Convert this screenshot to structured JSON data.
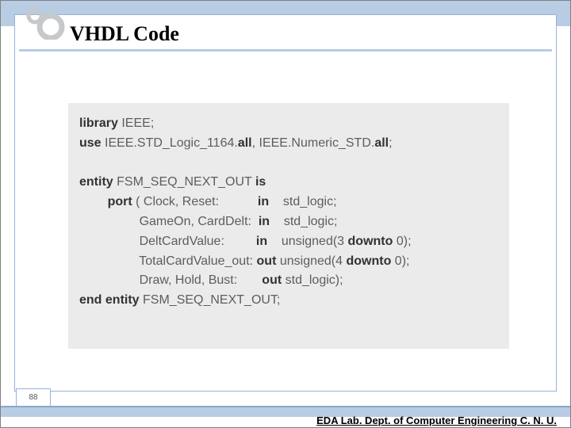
{
  "slide": {
    "title": "VHDL Code",
    "page_number": "88",
    "footer": "EDA Lab. Dept. of Computer Engineering C. N. U."
  },
  "logo": {
    "outer_ring_color": "#c5c9cc",
    "inner_ring_color": "#c5c9cc",
    "dot_color": "#c5c9cc",
    "bg": "#ffffff"
  },
  "code": {
    "background_color": "#efefef",
    "text_color": "#585858",
    "keyword_color": "#2a2a2a",
    "font_size": 16,
    "lines": [
      {
        "segments": [
          {
            "t": "library ",
            "kw": true
          },
          {
            "t": "IEEE;",
            "kw": false
          }
        ]
      },
      {
        "segments": [
          {
            "t": "use ",
            "kw": true
          },
          {
            "t": "IEEE.STD_Logic_1164.",
            "kw": false
          },
          {
            "t": "all",
            "kw": true
          },
          {
            "t": ", IEEE.Numeric_STD.",
            "kw": false
          },
          {
            "t": "all",
            "kw": true
          },
          {
            "t": ";",
            "kw": false
          }
        ]
      },
      {
        "segments": [
          {
            "t": " ",
            "kw": false
          }
        ]
      },
      {
        "segments": [
          {
            "t": "entity ",
            "kw": true
          },
          {
            "t": "FSM_SEQ_NEXT_OUT ",
            "kw": false
          },
          {
            "t": "is",
            "kw": true
          }
        ]
      },
      {
        "segments": [
          {
            "t": "        ",
            "kw": false
          },
          {
            "t": "port ",
            "kw": true
          },
          {
            "t": "( Clock, Reset:           ",
            "kw": false
          },
          {
            "t": "in",
            "kw": true
          },
          {
            "t": "    std_logic;",
            "kw": false
          }
        ]
      },
      {
        "segments": [
          {
            "t": "                 GameOn, CardDelt:  ",
            "kw": false
          },
          {
            "t": "in",
            "kw": true
          },
          {
            "t": "    std_logic;",
            "kw": false
          }
        ]
      },
      {
        "segments": [
          {
            "t": "                 DeltCardValue:         ",
            "kw": false
          },
          {
            "t": "in",
            "kw": true
          },
          {
            "t": "    unsigned(3 ",
            "kw": false
          },
          {
            "t": "downto",
            "kw": true
          },
          {
            "t": " 0);",
            "kw": false
          }
        ]
      },
      {
        "segments": [
          {
            "t": "                 TotalCardValue_out: ",
            "kw": false
          },
          {
            "t": "out",
            "kw": true
          },
          {
            "t": " unsigned(4 ",
            "kw": false
          },
          {
            "t": "downto",
            "kw": true
          },
          {
            "t": " 0);",
            "kw": false
          }
        ]
      },
      {
        "segments": [
          {
            "t": "                 Draw, Hold, Bust:       ",
            "kw": false
          },
          {
            "t": "out",
            "kw": true
          },
          {
            "t": " std_logic);",
            "kw": false
          }
        ]
      },
      {
        "segments": [
          {
            "t": "end entity ",
            "kw": true
          },
          {
            "t": "FSM_SEQ_NEXT_OUT;",
            "kw": false
          }
        ]
      }
    ]
  },
  "palette": {
    "band_color": "#b8cce4",
    "border_color": "#99b3d9",
    "band_edge": "#8aa6cc"
  }
}
